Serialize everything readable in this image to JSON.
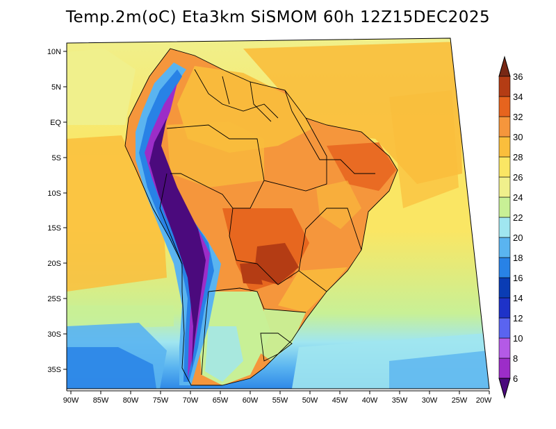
{
  "title": "Temp.2m(oC) Eta3km SiSMOM 60h 12Z15DEC2025",
  "map": {
    "lat_labels": [
      "10N",
      "5N",
      "EQ",
      "5S",
      "10S",
      "15S",
      "20S",
      "25S",
      "30S",
      "35S"
    ],
    "lon_labels": [
      "90W",
      "85W",
      "80W",
      "75W",
      "70W",
      "65W",
      "60W",
      "55W",
      "50W",
      "45W",
      "40W",
      "35W",
      "30W",
      "25W",
      "20W"
    ]
  },
  "colorbar": {
    "labels": [
      "6",
      "8",
      "10",
      "12",
      "14",
      "16",
      "18",
      "20",
      "22",
      "24",
      "26",
      "28",
      "30",
      "32",
      "34",
      "36"
    ],
    "colors": [
      "#4b0a7d",
      "#9c2dc8",
      "#b45ae6",
      "#5a64f0",
      "#1e32c8",
      "#0a3cb4",
      "#2882e6",
      "#5ab4f0",
      "#a0e6f0",
      "#c8f096",
      "#f0f08c",
      "#fae664",
      "#fabe3c",
      "#f5963c",
      "#e6641e",
      "#b43c14",
      "#782814"
    ]
  }
}
